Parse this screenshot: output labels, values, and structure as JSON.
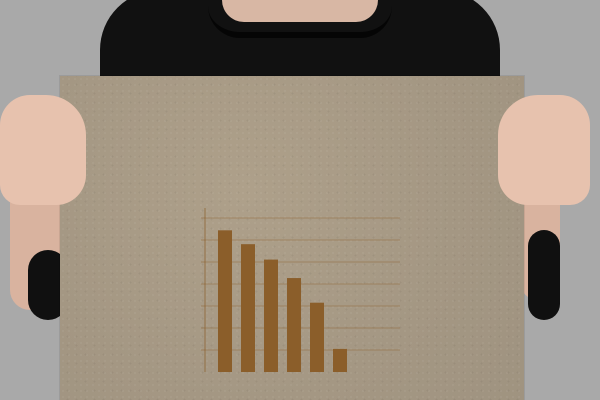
{
  "scene": {
    "background_color": "#a9a9a9",
    "shirt_color": "#111111",
    "skin_color": "#e7c2ae",
    "poster_color": "#a49783",
    "chart_color": "#8b5e2a"
  },
  "chart_data": {
    "type": "bar",
    "categories": [
      "",
      "",
      "",
      "",
      "",
      ""
    ],
    "values": [
      92,
      83,
      73,
      61,
      45,
      15
    ],
    "title": "",
    "xlabel": "",
    "ylabel": "",
    "ylim": [
      0,
      100
    ],
    "grid": true
  }
}
